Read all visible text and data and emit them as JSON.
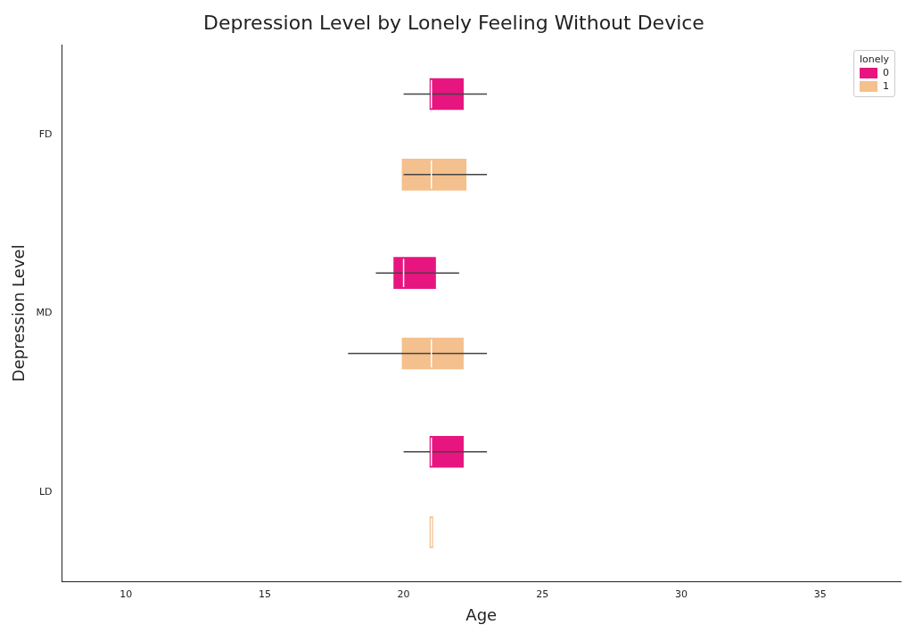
{
  "chart_data": {
    "type": "box",
    "orientation": "horizontal",
    "title": "Depression Level by Lonely Feeling Without Device",
    "xlabel": "Age",
    "ylabel": "Depression Level",
    "legend_title": "lonely",
    "legend": "top right",
    "grid": false,
    "categories": [
      "FD",
      "MD",
      "LD"
    ],
    "xlim": [
      7.7,
      37.9
    ],
    "xticks": [
      10,
      15,
      20,
      25,
      30,
      35
    ],
    "series": [
      {
        "name": "0",
        "color": "#e7157f",
        "boxes": [
          {
            "low": 20,
            "q1": 21,
            "median": 21,
            "q3": 22.1,
            "high": 23
          },
          {
            "low": 19,
            "q1": 19.7,
            "median": 20,
            "q3": 21.1,
            "high": 22
          },
          {
            "low": 20,
            "q1": 21,
            "median": 21,
            "q3": 22.1,
            "high": 23
          }
        ]
      },
      {
        "name": "1",
        "color": "#f4c08d",
        "boxes": [
          {
            "low": 20,
            "q1": 20,
            "median": 21,
            "q3": 22.2,
            "high": 23
          },
          {
            "low": 18,
            "q1": 20,
            "median": 21,
            "q3": 22.1,
            "high": 23
          },
          {
            "low": 21,
            "q1": 21,
            "median": 21,
            "q3": 21,
            "high": 21
          }
        ]
      }
    ]
  }
}
